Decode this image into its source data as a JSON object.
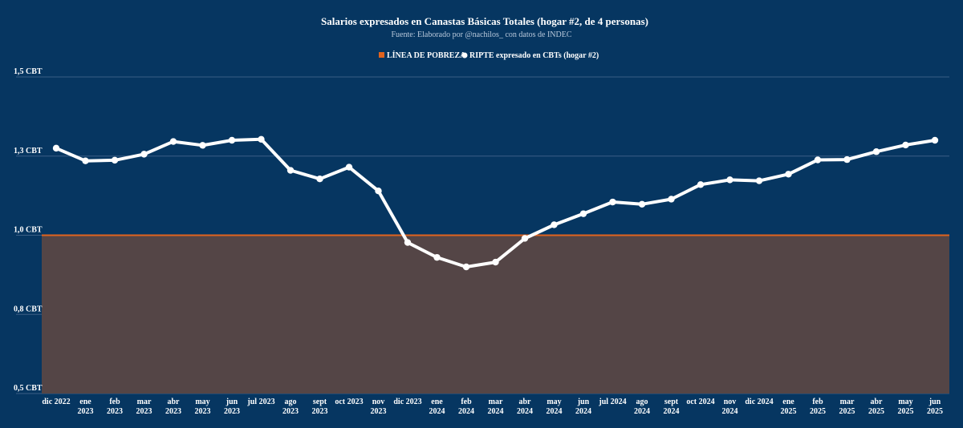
{
  "chart_data": {
    "type": "line",
    "title": "Salarios expresados en Canastas Básicas Totales (hogar #2, de 4 personas)",
    "subtitle": "Fuente: Elaborado por @nachilos_ con datos de INDEC",
    "xlabel": "",
    "ylabel": "",
    "ylim": [
      0.5,
      1.5
    ],
    "yticks": [
      {
        "value": 1.5,
        "label": "1,5 CBT"
      },
      {
        "value": 1.25,
        "label": "1,3 CBT"
      },
      {
        "value": 1.0,
        "label": "1,0 CBT"
      },
      {
        "value": 0.75,
        "label": "0,8 CBT"
      },
      {
        "value": 0.5,
        "label": "0,5 CBT"
      }
    ],
    "grid": true,
    "legend_position": "top-center",
    "categories": [
      [
        "dic 2022"
      ],
      [
        "ene",
        "2023"
      ],
      [
        "feb",
        "2023"
      ],
      [
        "mar",
        "2023"
      ],
      [
        "abr",
        "2023"
      ],
      [
        "may",
        "2023"
      ],
      [
        "jun",
        "2023"
      ],
      [
        "jul 2023"
      ],
      [
        "ago",
        "2023"
      ],
      [
        "sept",
        "2023"
      ],
      [
        "oct 2023"
      ],
      [
        "nov",
        "2023"
      ],
      [
        "dic 2023"
      ],
      [
        "ene",
        "2024"
      ],
      [
        "feb",
        "2024"
      ],
      [
        "mar",
        "2024"
      ],
      [
        "abr",
        "2024"
      ],
      [
        "may",
        "2024"
      ],
      [
        "jun",
        "2024"
      ],
      [
        "jul 2024"
      ],
      [
        "ago",
        "2024"
      ],
      [
        "sept",
        "2024"
      ],
      [
        "oct 2024"
      ],
      [
        "nov",
        "2024"
      ],
      [
        "dic 2024"
      ],
      [
        "ene",
        "2025"
      ],
      [
        "feb",
        "2025"
      ],
      [
        "mar",
        "2025"
      ],
      [
        "abr",
        "2025"
      ],
      [
        "may",
        "2025"
      ],
      [
        "jun",
        "2025"
      ]
    ],
    "series": [
      {
        "name": "LÍNEA DE POBREZA",
        "type": "area",
        "color": "#e0631f",
        "fill": "#544546",
        "value": 1.0
      },
      {
        "name": "RIPTE expresado en CBTs (hogar #2)",
        "type": "line",
        "color": "#ffffff",
        "values": [
          1.275,
          1.235,
          1.237,
          1.256,
          1.296,
          1.284,
          1.3,
          1.303,
          1.205,
          1.178,
          1.215,
          1.14,
          0.977,
          0.93,
          0.9,
          0.915,
          0.99,
          1.033,
          1.068,
          1.105,
          1.098,
          1.114,
          1.16,
          1.175,
          1.172,
          1.193,
          1.238,
          1.239,
          1.264,
          1.285,
          1.3
        ]
      }
    ]
  }
}
